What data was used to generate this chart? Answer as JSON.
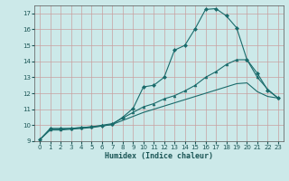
{
  "xlabel": "Humidex (Indice chaleur)",
  "bg_color": "#cce9e9",
  "grid_color": "#aad4d4",
  "line_color": "#1a6b6b",
  "xlim": [
    -0.5,
    23.5
  ],
  "ylim": [
    9,
    17.5
  ],
  "xticks": [
    0,
    1,
    2,
    3,
    4,
    5,
    6,
    7,
    8,
    9,
    10,
    11,
    12,
    13,
    14,
    15,
    16,
    17,
    18,
    19,
    20,
    21,
    22,
    23
  ],
  "yticks": [
    9,
    10,
    11,
    12,
    13,
    14,
    15,
    16,
    17
  ],
  "series1_x": [
    0,
    1,
    2,
    3,
    4,
    5,
    6,
    7,
    8,
    9,
    10,
    11,
    12,
    13,
    14,
    15,
    16,
    17,
    18,
    19,
    20,
    21,
    22,
    23
  ],
  "series1_y": [
    9.1,
    9.8,
    9.8,
    9.8,
    9.85,
    9.9,
    9.95,
    10.05,
    10.5,
    11.05,
    12.4,
    12.5,
    13.0,
    14.7,
    15.0,
    16.05,
    17.25,
    17.3,
    16.85,
    16.1,
    14.1,
    13.25,
    12.2,
    11.7
  ],
  "series2_x": [
    0,
    1,
    2,
    3,
    4,
    5,
    6,
    7,
    8,
    9,
    10,
    11,
    12,
    13,
    14,
    15,
    16,
    17,
    18,
    19,
    20,
    21,
    22,
    23
  ],
  "series2_y": [
    9.1,
    9.75,
    9.75,
    9.8,
    9.85,
    9.9,
    10.0,
    10.1,
    10.45,
    10.8,
    11.15,
    11.35,
    11.65,
    11.85,
    12.15,
    12.5,
    13.0,
    13.35,
    13.8,
    14.1,
    14.1,
    13.0,
    12.25,
    11.7
  ],
  "series3_x": [
    0,
    1,
    2,
    3,
    4,
    5,
    6,
    7,
    8,
    9,
    10,
    11,
    12,
    13,
    14,
    15,
    16,
    17,
    18,
    19,
    20,
    21,
    22,
    23
  ],
  "series3_y": [
    9.1,
    9.7,
    9.7,
    9.75,
    9.8,
    9.85,
    9.95,
    10.05,
    10.3,
    10.55,
    10.8,
    11.0,
    11.2,
    11.4,
    11.6,
    11.8,
    12.0,
    12.2,
    12.4,
    12.6,
    12.65,
    12.1,
    11.8,
    11.7
  ]
}
